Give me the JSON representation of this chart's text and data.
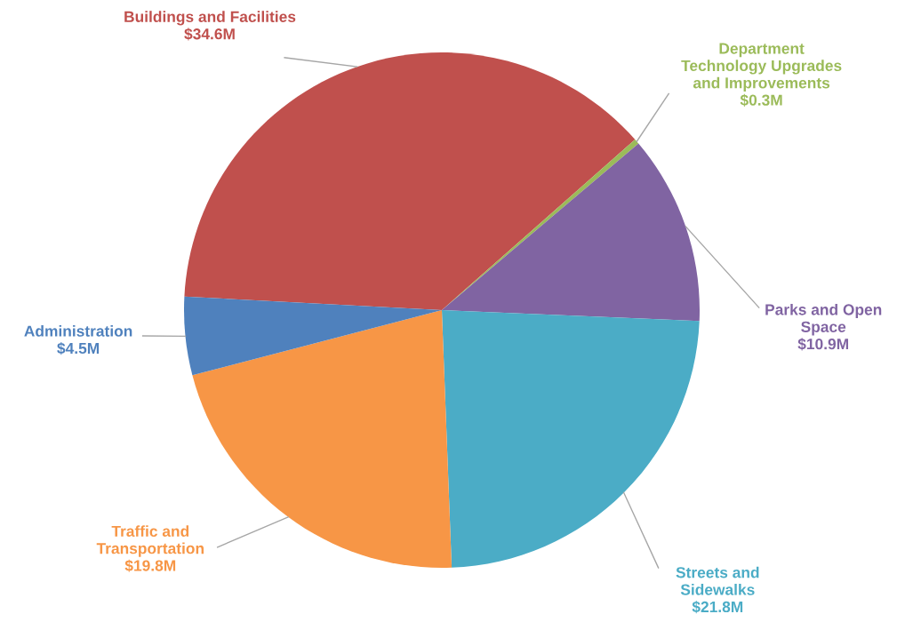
{
  "chart_data": {
    "type": "pie",
    "categories": [
      "Buildings and Facilities",
      "Department\nTechnology Upgrades\nand Improvements",
      "Parks and Open\nSpace",
      "Streets and\nSidewalks",
      "Traffic and\nTransportation",
      "Administration"
    ],
    "values": [
      34.6,
      0.3,
      10.9,
      21.8,
      19.8,
      4.5
    ],
    "value_labels": [
      "$34.6M",
      "$0.3M",
      "$10.9M",
      "$21.8M",
      "$19.8M",
      "$4.5M"
    ],
    "colors": [
      "#c0504d",
      "#9bbb59",
      "#8064a2",
      "#4bacc6",
      "#f79646",
      "#4f81bd"
    ]
  }
}
